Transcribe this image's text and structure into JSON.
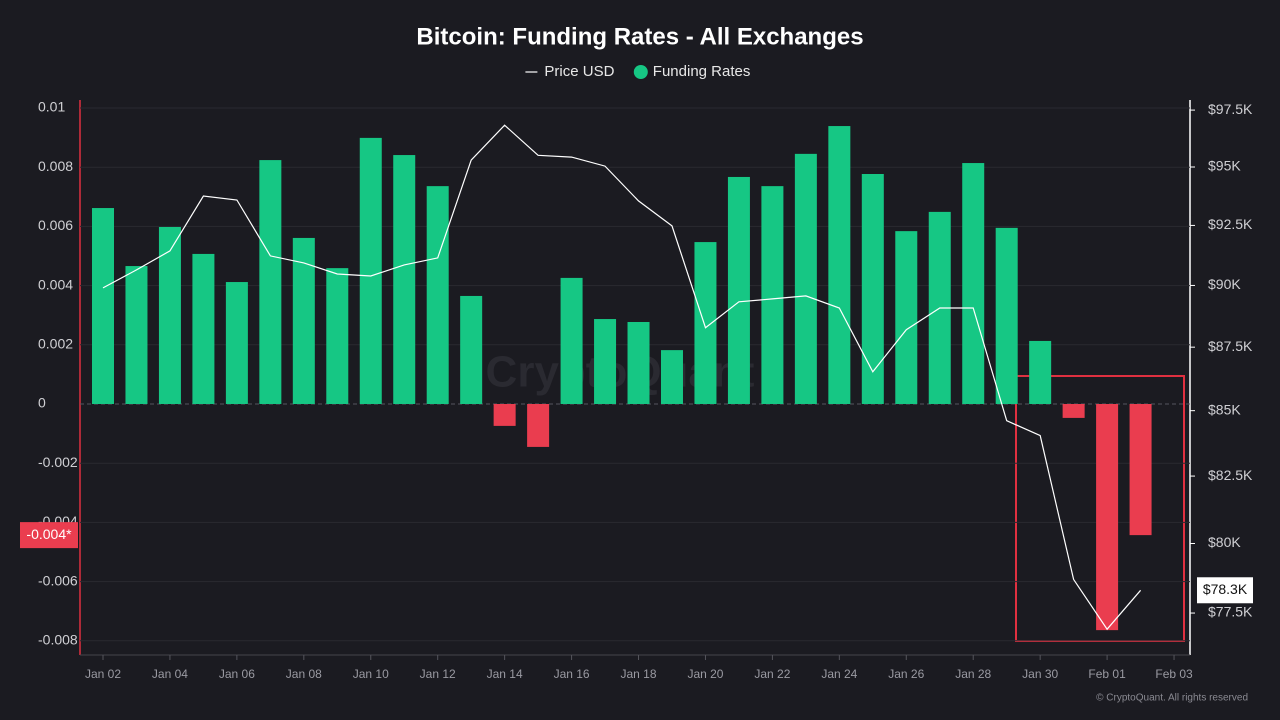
{
  "chart_data": {
    "type": "bar",
    "title": "Bitcoin: Funding Rates - All Exchanges",
    "watermark": "CryptoQuant",
    "source": "© CryptoQuant. All rights reserved",
    "categories": [
      "Jan 02",
      null,
      "Jan 04",
      null,
      "Jan 06",
      null,
      "Jan 08",
      null,
      "Jan 10",
      null,
      "Jan 12",
      null,
      "Jan 14",
      null,
      "Jan 16",
      null,
      "Jan 18",
      null,
      "Jan 20",
      null,
      "Jan 22",
      null,
      "Jan 24",
      null,
      "Jan 26",
      null,
      "Jan 28",
      null,
      "Jan 30",
      null,
      "Feb 01",
      null,
      "Feb 03"
    ],
    "series": [
      {
        "name": "Price USD",
        "type": "line",
        "axis": "y2",
        "color": "#ffffff",
        "values": [
          89900,
          90640,
          91430,
          93750,
          93580,
          91220,
          90930,
          90470,
          90390,
          90850,
          91140,
          95300,
          96830,
          95510,
          95430,
          95040,
          93540,
          92480,
          88280,
          89330,
          89450,
          89570,
          89080,
          86520,
          88200,
          89080,
          89080,
          84610,
          84040,
          78700,
          76930,
          78310,
          null
        ]
      },
      {
        "name": "Funding Rates",
        "type": "bar",
        "color": "#16c784",
        "negative_color": "#ea3d4f",
        "values": [
          0.00662,
          0.00466,
          0.00598,
          0.00507,
          0.00412,
          0.00824,
          0.00561,
          0.00459,
          0.00899,
          0.00841,
          0.00736,
          0.00365,
          -0.00074,
          -0.00145,
          0.00426,
          0.00287,
          0.00277,
          0.00182,
          0.00547,
          0.00767,
          0.00736,
          0.00845,
          0.00939,
          0.00777,
          0.00584,
          0.00649,
          0.00814,
          0.00595,
          0.00213,
          -0.00047,
          -0.00764,
          -0.00443,
          null
        ]
      }
    ],
    "ylim": [
      -0.00848,
      0.01027
    ],
    "yticks": [
      0.01,
      0.008,
      0.006,
      0.004,
      0.002,
      0,
      -0.002,
      -0.004,
      -0.006,
      -0.008
    ],
    "y2lim": [
      76030,
      97950
    ],
    "y2scale": "log",
    "y2ticks": [
      {
        "value": 97500,
        "label": "$97.5K"
      },
      {
        "value": 95000,
        "label": "$95K"
      },
      {
        "value": 92500,
        "label": "$92.5K"
      },
      {
        "value": 90000,
        "label": "$90K"
      },
      {
        "value": 87500,
        "label": "$87.5K"
      },
      {
        "value": 85000,
        "label": "$85K"
      },
      {
        "value": 82500,
        "label": "$82.5K"
      },
      {
        "value": 80000,
        "label": "$80K"
      },
      {
        "value": 77500,
        "label": "$77.5K"
      }
    ],
    "last_value_labels": {
      "y": {
        "value": -0.00443,
        "label": "-0.004*"
      },
      "y2": {
        "value": 78310,
        "label": "$78.3K"
      }
    },
    "grid": true,
    "legend": "top"
  }
}
